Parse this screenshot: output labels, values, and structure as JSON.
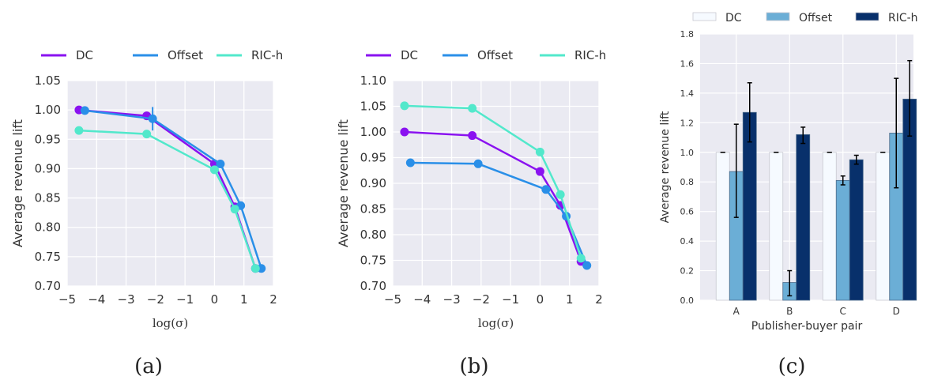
{
  "captions": [
    "(a)",
    "(b)",
    "(c)"
  ],
  "colors": {
    "DC": "#8a12f0",
    "Offset": "#2a8fe8",
    "RIC-h": "#52e8cb",
    "bar_DC": "#f6faff",
    "bar_Offset": "#6baed6",
    "bar_RIC-h": "#08306b",
    "plot_bg": "#eaeaf2"
  },
  "chart_data": [
    {
      "type": "line",
      "title": "(a)",
      "xlabel": "log(σ)",
      "ylabel": "Average revenue lift",
      "xlim": [
        -5,
        2
      ],
      "ylim": [
        0.7,
        1.05
      ],
      "xticks": [
        "−5",
        "−4",
        "−3",
        "−2",
        "−1",
        "0",
        "1",
        "2"
      ],
      "yticks": [
        "0.70",
        "0.75",
        "0.80",
        "0.85",
        "0.90",
        "0.95",
        "1.00",
        "1.05"
      ],
      "grid": true,
      "legend": "top",
      "series": [
        {
          "name": "DC",
          "x": [
            -4.6,
            -2.3,
            0.0,
            0.69,
            1.39
          ],
          "y": [
            1.0,
            0.99,
            0.908,
            0.835,
            0.73
          ]
        },
        {
          "name": "Offset",
          "x": [
            -4.4,
            -2.1,
            0.2,
            0.89,
            1.59
          ],
          "y": [
            0.999,
            0.985,
            0.908,
            0.837,
            0.73
          ],
          "err": [
            0.006,
            0.02,
            0,
            0,
            0
          ]
        },
        {
          "name": "RIC-h",
          "x": [
            -4.6,
            -2.3,
            0.0,
            0.69,
            1.39
          ],
          "y": [
            0.965,
            0.959,
            0.898,
            0.831,
            0.73
          ]
        }
      ]
    },
    {
      "type": "line",
      "title": "(b)",
      "xlabel": "log(σ)",
      "ylabel": "Average revenue lift",
      "xlim": [
        -5,
        2
      ],
      "ylim": [
        0.7,
        1.1
      ],
      "xticks": [
        "−5",
        "−4",
        "−3",
        "−2",
        "−1",
        "0",
        "1",
        "2"
      ],
      "yticks": [
        "0.70",
        "0.75",
        "0.80",
        "0.85",
        "0.90",
        "0.95",
        "1.00",
        "1.05",
        "1.10"
      ],
      "grid": true,
      "legend": "top",
      "series": [
        {
          "name": "DC",
          "x": [
            -4.6,
            -2.3,
            0.0,
            0.69,
            1.39
          ],
          "y": [
            1.0,
            0.993,
            0.923,
            0.857,
            0.748
          ]
        },
        {
          "name": "Offset",
          "x": [
            -4.4,
            -2.1,
            0.2,
            0.89,
            1.59
          ],
          "y": [
            0.94,
            0.938,
            0.888,
            0.836,
            0.74
          ]
        },
        {
          "name": "RIC-h",
          "x": [
            -4.6,
            -2.3,
            0.0,
            0.69,
            1.39
          ],
          "y": [
            1.051,
            1.046,
            0.961,
            0.878,
            0.754
          ]
        }
      ]
    },
    {
      "type": "bar",
      "title": "(c)",
      "xlabel": "Publisher-buyer pair",
      "ylabel": "Average revenue lift",
      "categories": [
        "A",
        "B",
        "C",
        "D"
      ],
      "ylim": [
        0.0,
        1.8
      ],
      "yticks": [
        "0.0",
        "0.2",
        "0.4",
        "0.6",
        "0.8",
        "1.0",
        "1.2",
        "1.4",
        "1.6",
        "1.8"
      ],
      "grid": true,
      "legend": "top",
      "series": [
        {
          "name": "DC",
          "values": [
            1.0,
            1.0,
            1.0,
            1.0
          ],
          "err_low": [
            1.0,
            1.0,
            1.0,
            1.0
          ],
          "err_high": [
            1.0,
            1.0,
            1.0,
            1.0
          ]
        },
        {
          "name": "Offset",
          "values": [
            0.87,
            0.12,
            0.81,
            1.13
          ],
          "err_low": [
            0.56,
            0.03,
            0.78,
            0.76
          ],
          "err_high": [
            1.19,
            0.2,
            0.84,
            1.5
          ]
        },
        {
          "name": "RIC-h",
          "values": [
            1.27,
            1.12,
            0.95,
            1.36
          ],
          "err_low": [
            1.07,
            1.06,
            0.92,
            1.11
          ],
          "err_high": [
            1.47,
            1.17,
            0.98,
            1.62
          ]
        }
      ]
    }
  ]
}
